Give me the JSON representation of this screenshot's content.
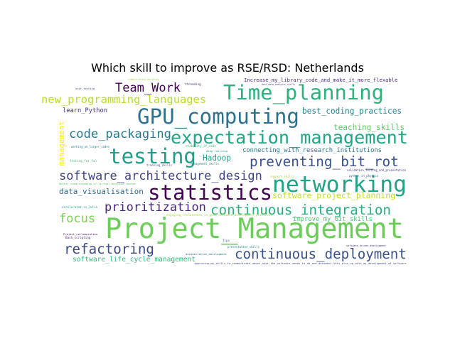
{
  "title": "Which skill to improve as RSE/RSD: Netherlands",
  "words": [
    {
      "text": "Project_Management",
      "color": "#6ccd5a"
    },
    {
      "text": "GPU_computing",
      "color": "#2c728e"
    },
    {
      "text": "Time_planning",
      "color": "#2db27d"
    },
    {
      "text": "expectation_management",
      "color": "#21a685"
    },
    {
      "text": "statistics",
      "color": "#440154"
    },
    {
      "text": "networking",
      "color": "#21a386"
    },
    {
      "text": "testing",
      "color": "#1f9e89"
    },
    {
      "text": "continuous_deployment",
      "color": "#3b528b"
    },
    {
      "text": "continuous_integration",
      "color": "#2ab07f"
    },
    {
      "text": "refactoring",
      "color": "#3e4a89"
    },
    {
      "text": "preventing_bit_rot",
      "color": "#3b528b"
    },
    {
      "text": "software_architecture_design",
      "color": "#414487"
    },
    {
      "text": "code_packaging",
      "color": "#2a788e"
    },
    {
      "text": "prioritization",
      "color": "#482677"
    },
    {
      "text": "Team_Work",
      "color": "#440154"
    },
    {
      "text": "new_programming_languages",
      "color": "#b5de2b"
    },
    {
      "text": "focus",
      "color": "#7ad151"
    },
    {
      "text": "software_project_planning",
      "color": "#bddf26"
    },
    {
      "text": "software_life_cycle_management",
      "color": "#35b779"
    },
    {
      "text": "best_coding_practices",
      "color": "#25848e"
    },
    {
      "text": "teaching_skills",
      "color": "#5ec962"
    },
    {
      "text": "Hadoop",
      "color": "#20a486"
    },
    {
      "text": "data_visualisation",
      "color": "#31688e"
    },
    {
      "text": "connecting_with_research_institutions",
      "color": "#2a788e"
    },
    {
      "text": "improve_my_Git_skills",
      "color": "#4ac16d"
    },
    {
      "text": "learn_Python",
      "color": "#46327e"
    },
    {
      "text": "Increase_my_library_code_and_make_it_more_flexable",
      "color": "#472d7b"
    },
    {
      "text": "management",
      "color": "#fde725"
    },
    {
      "text": "threading",
      "color": "#472c7a"
    },
    {
      "text": "unit_testing",
      "color": "#3e4c8a"
    },
    {
      "text": "best_data_analysis_skills",
      "color": "#433d84"
    },
    {
      "text": "communication_building",
      "color": "#9dd93b"
    },
    {
      "text": "testing_for_fun",
      "color": "#3dbc74"
    },
    {
      "text": "validation_testing_and_presentation",
      "color": "#453882"
    },
    {
      "text": "python_in_physics",
      "color": "#355f8d"
    },
    {
      "text": "Project_collaboration",
      "color": "#440154"
    },
    {
      "text": "documentation_development",
      "color": "#2e6e8e"
    },
    {
      "text": "presentation_skills",
      "color": "#25858e"
    },
    {
      "text": "Tips",
      "color": "#34618d"
    },
    {
      "text": "Better_understanding_of_virtual_machines_docker",
      "color": "#5cc863"
    },
    {
      "text": "software_driven_development",
      "color": "#472f7d"
    },
    {
      "text": "tracking_skills",
      "color": "#38588c"
    },
    {
      "text": "Management_skills",
      "color": "#23898e"
    },
    {
      "text": "deep_learning",
      "color": "#1f958b"
    },
    {
      "text": "working_on_larger_codes",
      "color": "#26818e"
    },
    {
      "text": "engaging_researchers_in_good_software_development_practices",
      "color": "#9bd93c"
    },
    {
      "text": "improving_my_skills_to_communicate_about_what_the_software_needs_to_do_and_document_this_plus_up_with_my_development_of_software",
      "color": "#3f4788"
    },
    {
      "text": "Bash_scripting",
      "color": "#472878"
    },
    {
      "text": "accelerated_in_Julia",
      "color": "#1fa188"
    },
    {
      "text": "stability_of_code",
      "color": "#38b977"
    },
    {
      "text": "support_skills",
      "color": "#a5db36"
    }
  ]
}
